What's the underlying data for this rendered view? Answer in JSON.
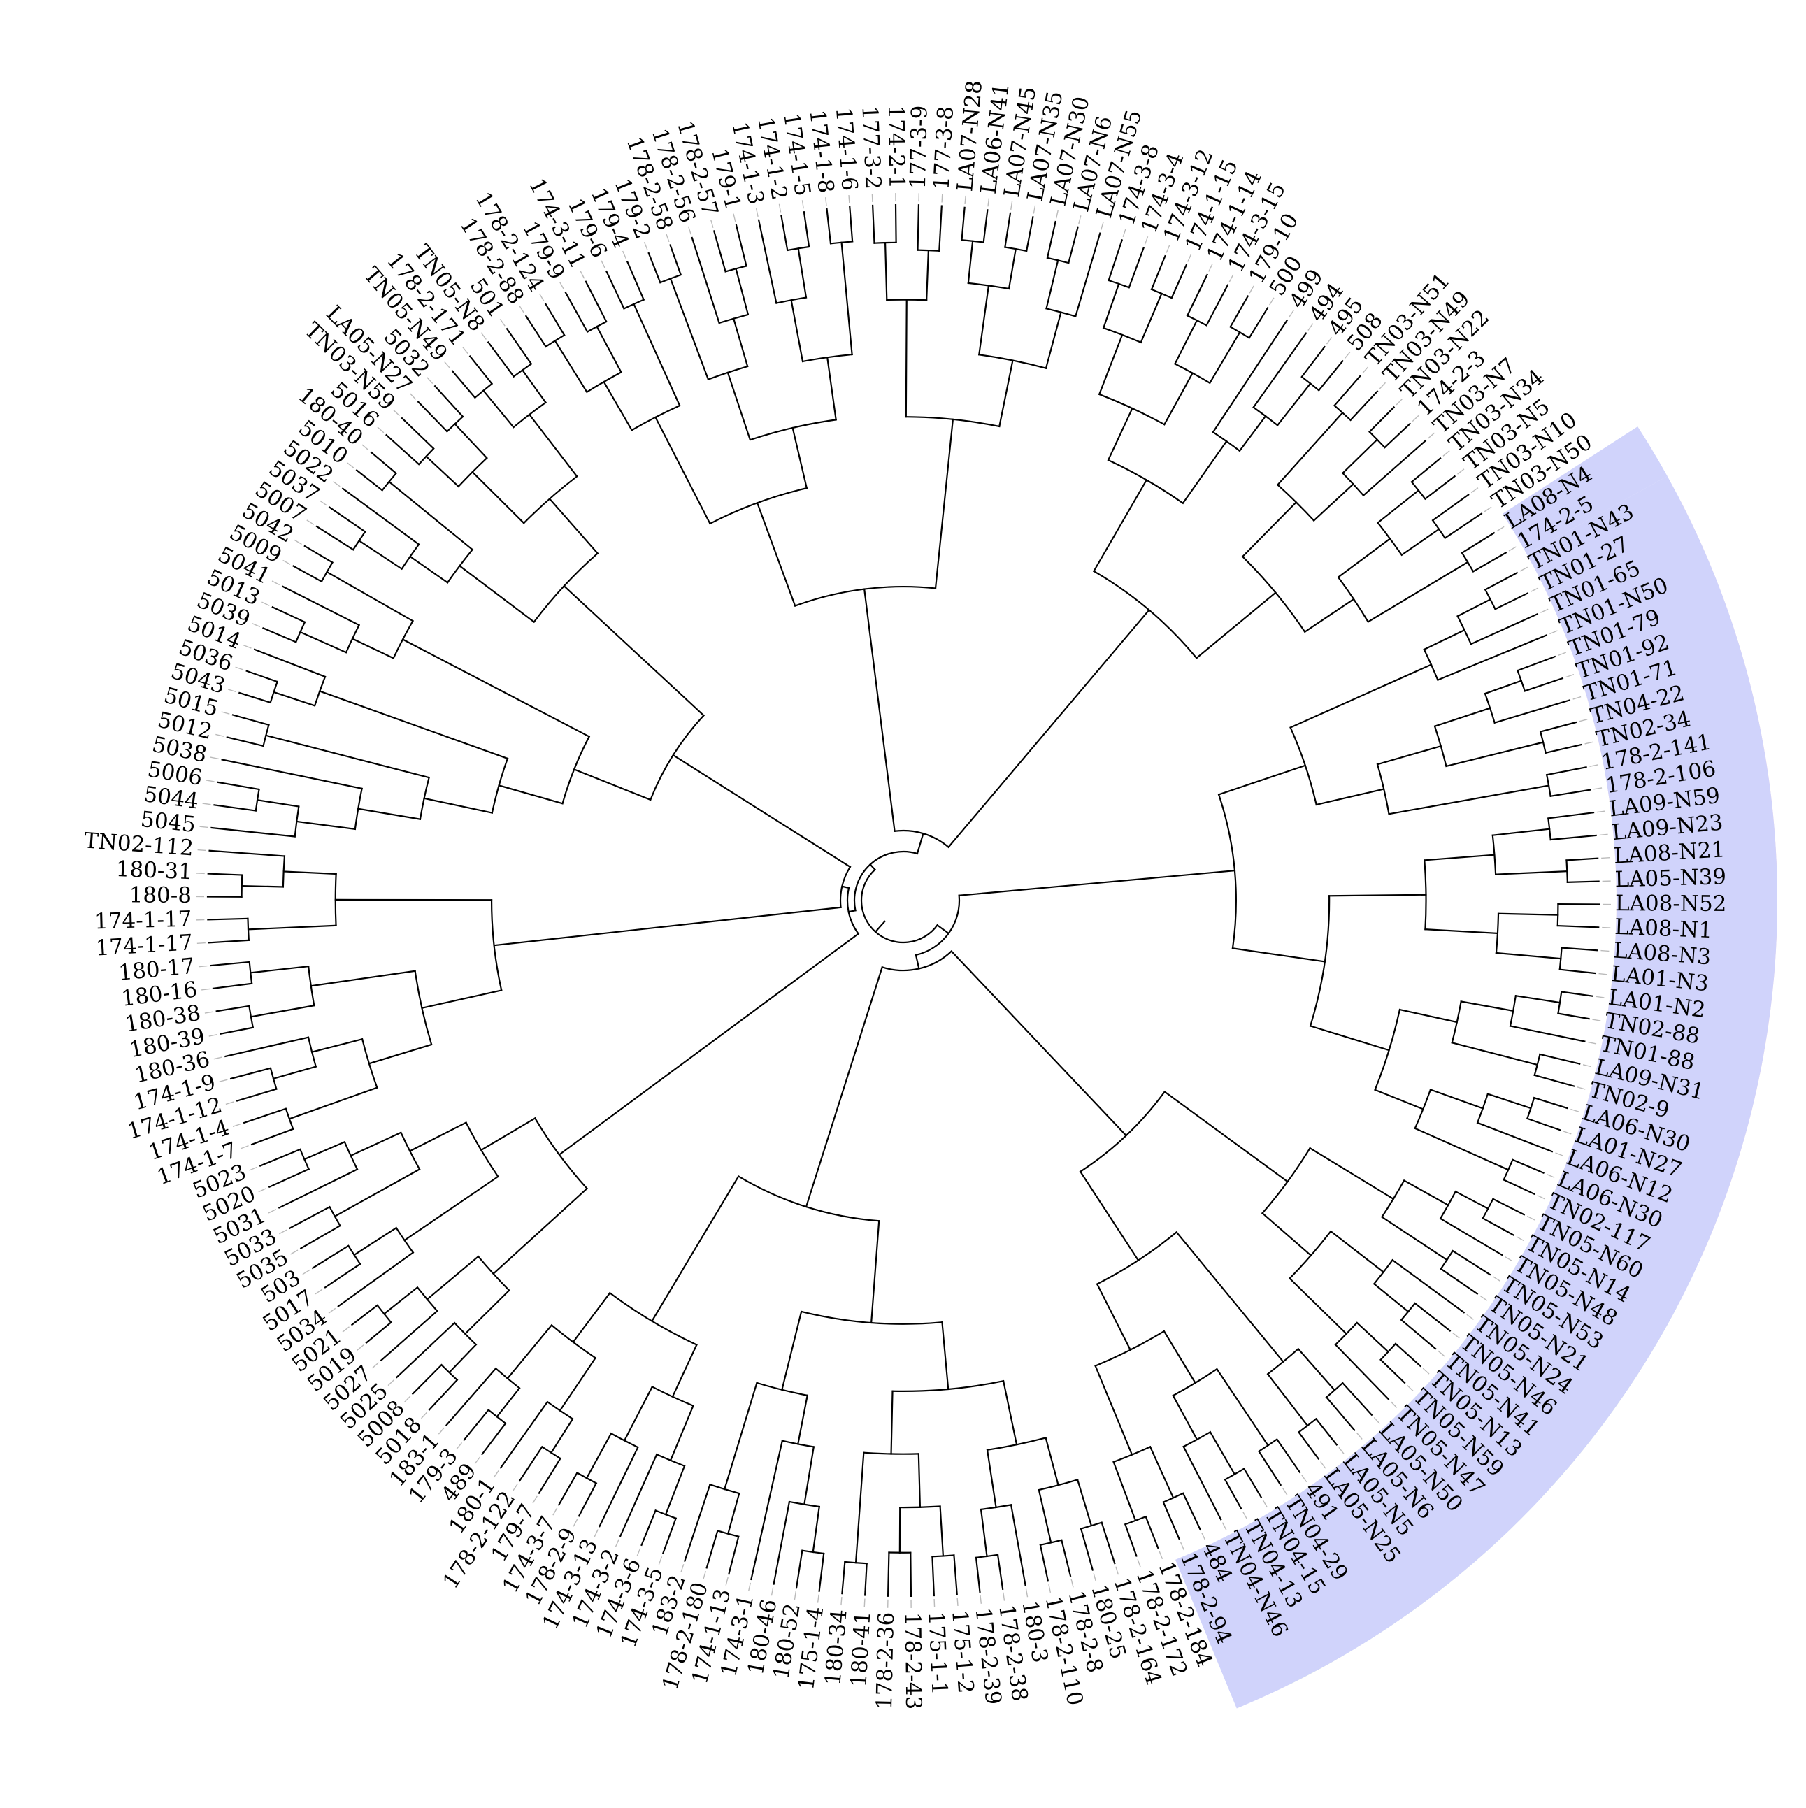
{
  "colors": {
    "blue_clade": "#d0d3fb",
    "red_clade": "#fcd3d4",
    "green_clade": "#d3ebd3",
    "background": "#ffffff",
    "line": "#000000"
  },
  "tree": {
    "type": "circular-dendrogram",
    "clades": [
      {
        "name": "red",
        "color": "#fcd3d4",
        "first": "TN01-N43",
        "last": "TN02-117"
      },
      {
        "name": "green",
        "color": "#d3ebd3",
        "first": "TN05-N60",
        "last": "484"
      },
      {
        "name": "blue",
        "color": "#d0d3fb",
        "first": "178-2-94",
        "last": "LA08-N4"
      }
    ],
    "leaves": [
      "174-2-5",
      "LA08-N4",
      "TN03-N50",
      "TN03-N10",
      "TN03-N5",
      "TN03-N34",
      "TN03-N7",
      "174-2-3",
      "TN03-N22",
      "TN03-N49",
      "TN03-N51",
      "508",
      "495",
      "494",
      "499",
      "500",
      "179-10",
      "174-3-15",
      "174-1-14",
      "174-1-15",
      "174-3-12",
      "174-3-4",
      "174-3-8",
      "LA07-N55",
      "LA07-N6",
      "LA07-N30",
      "LA07-N35",
      "LA07-N45",
      "LA06-N41",
      "LA07-N28",
      "177-3-8",
      "177-3-9",
      "174-2-1",
      "177-3-2",
      "174-1-6",
      "174-1-8",
      "174-1-5",
      "174-1-2",
      "174-1-3",
      "179-1",
      "178-2-57",
      "178-2-56",
      "178-2-58",
      "179-2",
      "179-4",
      "179-6",
      "174-3-11",
      "179-9",
      "178-2-124",
      "178-2-88",
      "501",
      "TN05-N8",
      "178-2-171",
      "TN05-N49",
      "5032",
      "LA05-N27",
      "TN03-N59",
      "5016",
      "180-40",
      "5010",
      "5022",
      "5037",
      "5007",
      "5042",
      "5009",
      "5041",
      "5013",
      "5039",
      "5014",
      "5036",
      "5043",
      "5015",
      "5012",
      "5038",
      "5006",
      "5044",
      "5045",
      "TN02-112",
      "180-31",
      "180-8",
      "174-1-17",
      "174-1-17",
      "180-17",
      "180-16",
      "180-38",
      "180-39",
      "180-36",
      "174-1-9",
      "174-1-12",
      "174-1-4",
      "174-1-7",
      "5023",
      "5020",
      "5031",
      "5033",
      "5035",
      "503",
      "5017",
      "5034",
      "5021",
      "5019",
      "5027",
      "5025",
      "5008",
      "5018",
      "183-1",
      "179-3",
      "489",
      "180-1",
      "178-2-122",
      "179-7",
      "174-3-7",
      "178-2-9",
      "174-3-13",
      "174-3-2",
      "174-3-6",
      "174-3-5",
      "183-2",
      "178-2-180",
      "174-1-13",
      "174-3-1",
      "180-46",
      "180-52",
      "175-1-4",
      "180-34",
      "180-41",
      "178-2-36",
      "178-2-43",
      "175-1-1",
      "175-1-2",
      "178-2-39",
      "178-2-38",
      "180-3",
      "178-2-110",
      "178-2-8",
      "180-25",
      "178-2-164",
      "178-2-172",
      "178-2-184",
      "178-2-94",
      "484",
      "TN04-N46",
      "TN04-13",
      "TN04-15",
      "TN04-29",
      "491",
      "LA05-N25",
      "LA05-N5",
      "LA05-N6",
      "LA05-N50",
      "TN05-N47",
      "TN05-N59",
      "TN05-N13",
      "TN05-N41",
      "TN05-N46",
      "TN05-N24",
      "TN05-N21",
      "TN05-N53",
      "TN05-N48",
      "TN05-N14",
      "TN05-N60",
      "TN02-117",
      "LA06-N30",
      "LA06-N12",
      "LA01-N27",
      "LA06-N30",
      "TN02-9",
      "LA09-N31",
      "TN01-88",
      "TN02-88",
      "LA01-N2",
      "LA01-N3",
      "LA08-N3",
      "LA08-N1",
      "LA08-N52",
      "LA05-N39",
      "LA08-N21",
      "LA09-N23",
      "LA09-N59",
      "178-2-106",
      "178-2-141",
      "TN02-34",
      "TN04-22",
      "TN01-71",
      "TN01-92",
      "TN01-79",
      "TN01-N50",
      "TN01-65",
      "TN01-27",
      "TN01-N43"
    ]
  }
}
